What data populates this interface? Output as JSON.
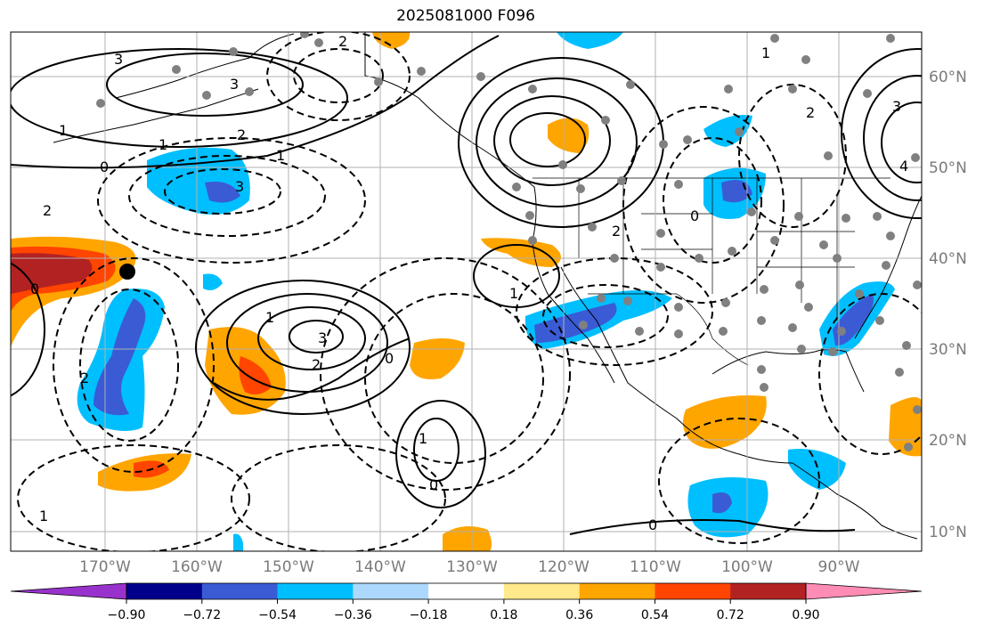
{
  "title": "2025081000 F096",
  "map": {
    "lon_labels": [
      "170°W",
      "160°W",
      "150°W",
      "140°W",
      "130°W",
      "120°W",
      "110°W",
      "100°W",
      "90°W"
    ],
    "lat_labels": [
      "60°N",
      "50°N",
      "40°N",
      "30°N",
      "20°N",
      "10°N"
    ],
    "contour_labels": [
      "3",
      "1",
      "0",
      "2",
      "3",
      "1",
      "2",
      "3",
      "0",
      "1",
      "2",
      "1",
      "3",
      "2",
      "0",
      "1",
      "2",
      "0",
      "1",
      "0",
      "2",
      "4",
      "3",
      "1",
      "2",
      "0",
      "1"
    ]
  },
  "colorbar": {
    "ticks": [
      "−0.90",
      "−0.72",
      "−0.54",
      "−0.36",
      "−0.18",
      "0.18",
      "0.36",
      "0.54",
      "0.72",
      "0.90"
    ],
    "colors": [
      "#9932cc",
      "#00008b",
      "#3b5bd5",
      "#00bfff",
      "#add8fe",
      "#ffffff",
      "#ffe98a",
      "#ffa500",
      "#ff4500",
      "#b22222",
      "#ff8cb4"
    ]
  }
}
